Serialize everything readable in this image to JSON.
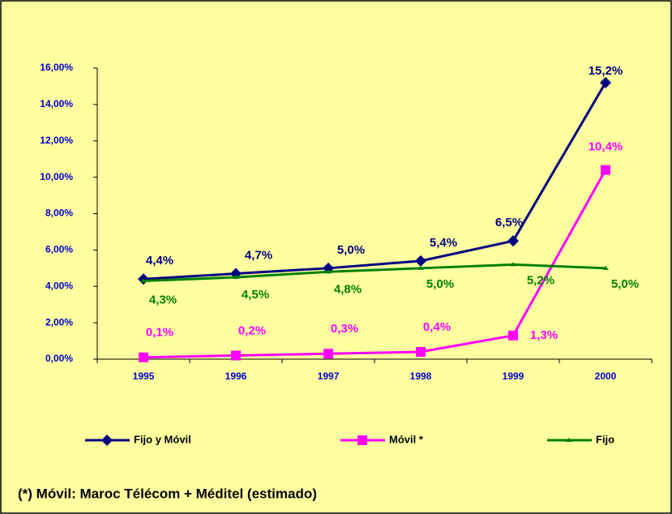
{
  "chart_data": {
    "type": "line",
    "categories": [
      "1995",
      "1996",
      "1997",
      "1998",
      "1999",
      "2000"
    ],
    "series": [
      {
        "name": "Fijo y Móvil",
        "color": "#000080",
        "values": [
          4.4,
          4.7,
          5.0,
          5.4,
          6.5,
          15.2
        ],
        "value_labels": [
          "4,4%",
          "4,7%",
          "5,0%",
          "5,4%",
          "6,5%",
          "15,2%"
        ]
      },
      {
        "name": "Móvil *",
        "color": "#ff00ff",
        "values": [
          0.1,
          0.2,
          0.3,
          0.4,
          1.3,
          10.4
        ],
        "value_labels": [
          "0,1%",
          "0,2%",
          "0,3%",
          "0,4%",
          "1,3%",
          "10,4%"
        ]
      },
      {
        "name": "Fijo",
        "color": "#008000",
        "values": [
          4.3,
          4.5,
          4.8,
          5.0,
          5.2,
          5.0
        ],
        "value_labels": [
          "4,3%",
          "4,5%",
          "4,8%",
          "5,0%",
          "5,2%",
          "5,0%"
        ]
      }
    ],
    "ylim": [
      0,
      16
    ],
    "yticks": [
      {
        "value": 0,
        "label": "0,00%"
      },
      {
        "value": 2,
        "label": "2,00%"
      },
      {
        "value": 4,
        "label": "4,00%"
      },
      {
        "value": 6,
        "label": "6,00%"
      },
      {
        "value": 8,
        "label": "8,00%"
      },
      {
        "value": 10,
        "label": "10,00%"
      },
      {
        "value": 12,
        "label": "12,00%"
      },
      {
        "value": 14,
        "label": "14,00%"
      },
      {
        "value": 16,
        "label": "16,00%"
      }
    ],
    "footnote": "(*) Móvil: Maroc Télécom + Méditel (estimado)"
  }
}
